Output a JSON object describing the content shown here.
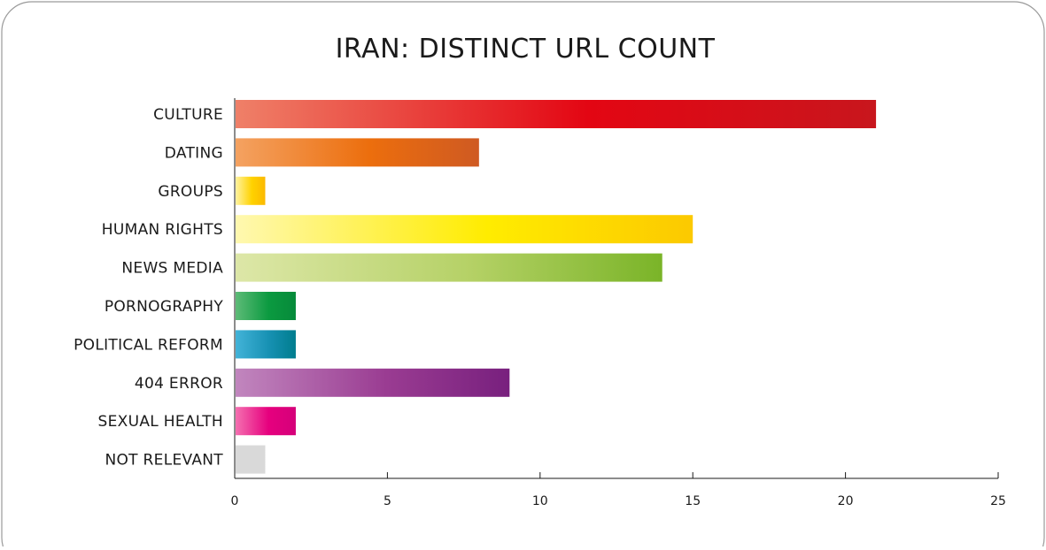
{
  "chart_data": {
    "type": "bar",
    "orientation": "horizontal",
    "title": "IRAN: DISTINCT URL COUNT",
    "xlabel": "",
    "ylabel": "",
    "categories": [
      "CULTURE",
      "DATING",
      "GROUPS",
      "HUMAN RIGHTS",
      "NEWS MEDIA",
      "PORNOGRAPHY",
      "POLITICAL REFORM",
      "404 ERROR",
      "SEXUAL HEALTH",
      "NOT RELEVANT"
    ],
    "values": [
      21,
      8,
      1,
      15,
      14,
      2,
      2,
      9,
      2,
      1
    ],
    "xlim": [
      0,
      25
    ],
    "xticks": [
      0,
      5,
      10,
      15,
      20,
      25
    ],
    "grid": false,
    "legend": "none",
    "colors": [
      {
        "start": "#ef8068",
        "mid": "#e30613",
        "end": "#c8161d"
      },
      {
        "start": "#f4a261",
        "mid": "#ec6e0d",
        "end": "#cf5a22"
      },
      {
        "start": "#fff3a0",
        "mid": "#ffd200",
        "end": "#fbb900"
      },
      {
        "start": "#fff8b0",
        "mid": "#ffec00",
        "end": "#fcc900"
      },
      {
        "start": "#dde7a8",
        "mid": "#b5d166",
        "end": "#7ab428"
      },
      {
        "start": "#5dbb77",
        "mid": "#0b9a40",
        "end": "#068a3a"
      },
      {
        "start": "#43b3d8",
        "mid": "#1791b3",
        "end": "#007d8e"
      },
      {
        "start": "#c186be",
        "mid": "#9a3c92",
        "end": "#78207e"
      },
      {
        "start": "#f46fb0",
        "mid": "#e6007e",
        "end": "#d5007a"
      },
      {
        "start": "#d9d9d9",
        "mid": "#d9d9d9",
        "end": "#d9d9d9"
      }
    ]
  }
}
